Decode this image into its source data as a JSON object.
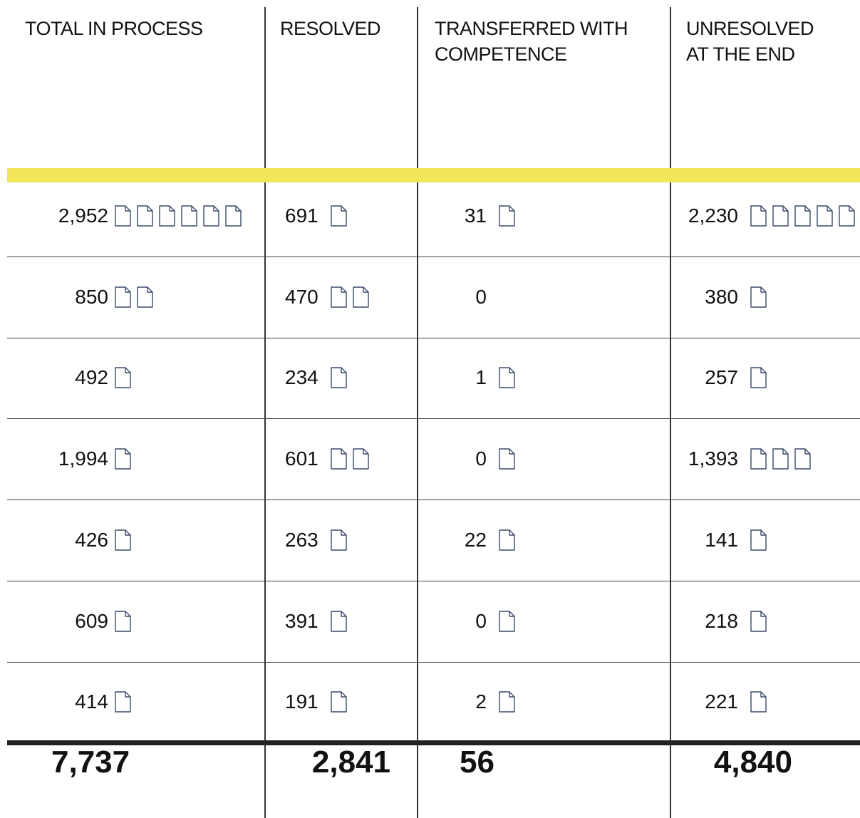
{
  "header": [
    "TOTAL IN PROCESS",
    "RESOLVED",
    "TRANSFERRED WITH COMPETENCE",
    "UNRESOLVED AT THE END"
  ],
  "rows": [
    [
      "2,952",
      "691",
      "31",
      "2,230"
    ],
    [
      "850",
      "470",
      "0",
      "380"
    ],
    [
      "492",
      "234",
      "1",
      "257"
    ],
    [
      "1,994",
      "601",
      "0",
      "1,393"
    ],
    [
      "426",
      "263",
      "22",
      "141"
    ],
    [
      "609",
      "391",
      "0",
      "218"
    ],
    [
      "414",
      "191",
      "2",
      "221"
    ]
  ],
  "totals": [
    "7,737",
    "2,841",
    "56",
    "4,840"
  ]
}
